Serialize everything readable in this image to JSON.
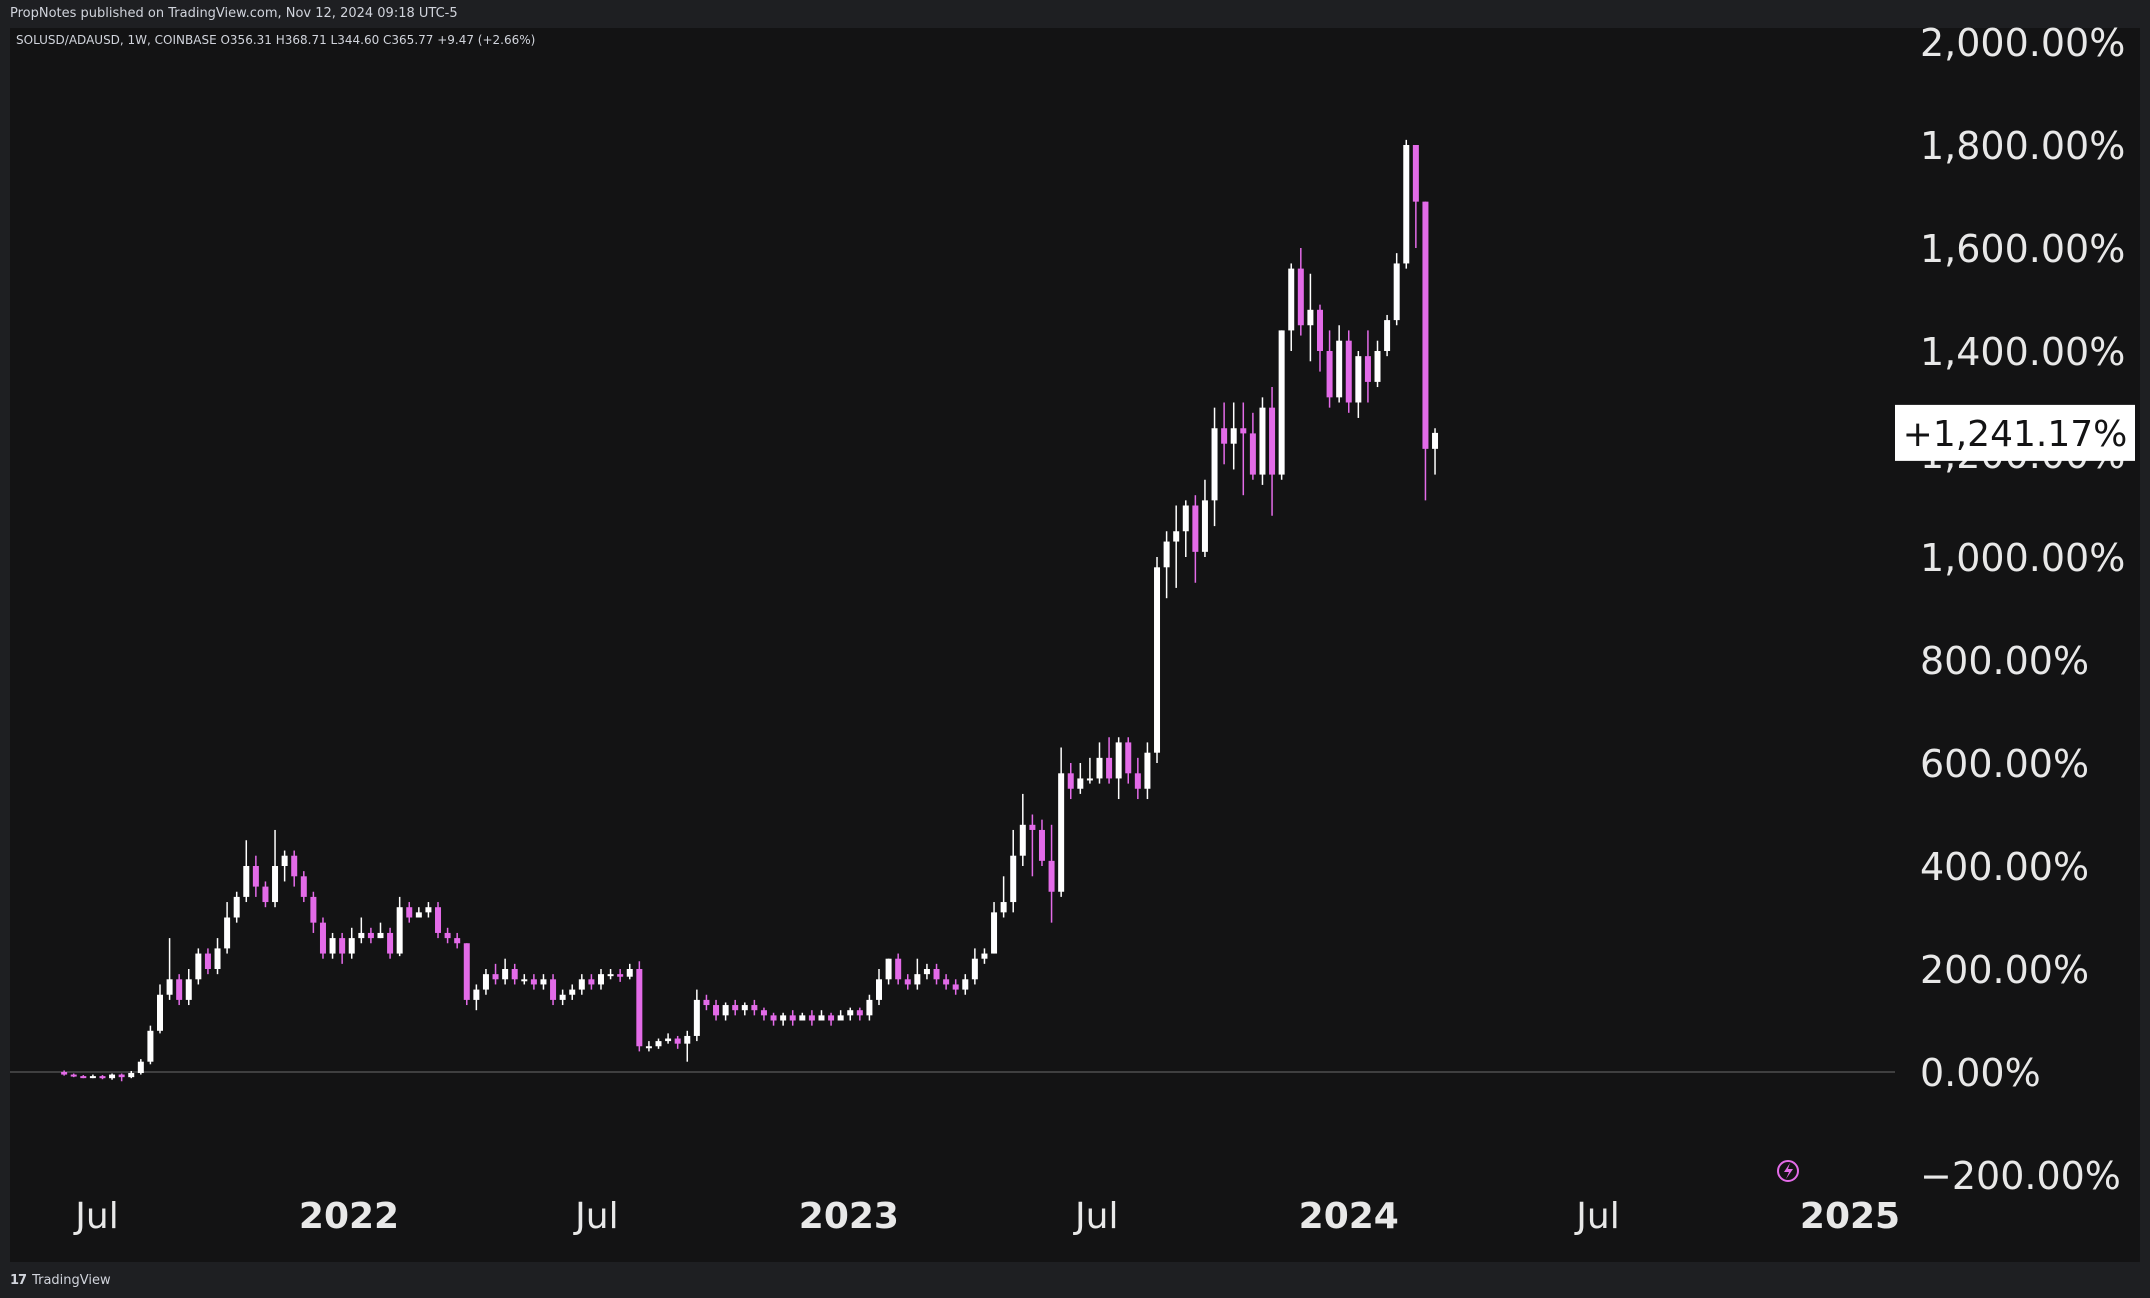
{
  "header": {
    "published_text": "PropNotes published on TradingView.com, Nov 12, 2024 09:18 UTC-5"
  },
  "legend": {
    "symbol_line": "SOLUSD/ADAUSD, 1W, COINBASE  O356.31  H368.71  L344.60  C365.77  +9.47 (+2.66%)"
  },
  "footer": {
    "brand_mark": "17",
    "brand_label": "TradingView"
  },
  "colors": {
    "background": "#131314",
    "up_candle": "#ffffff",
    "down_candle": "#e36be8",
    "text": "#e8e8e8",
    "zero_line": "#6b6b6b"
  },
  "chart_data": {
    "type": "candlestick",
    "title": "",
    "xlabel": "",
    "ylabel": "",
    "y_scale": "percent",
    "ylim": [
      -200,
      2000
    ],
    "y_ticks": [
      {
        "value": 2000,
        "label": "2,000.00%"
      },
      {
        "value": 1800,
        "label": "1,800.00%"
      },
      {
        "value": 1600,
        "label": "1,600.00%"
      },
      {
        "value": 1400,
        "label": "1,400.00%"
      },
      {
        "value": 1200,
        "label": "1,200.00%"
      },
      {
        "value": 1000,
        "label": "1,000.00%"
      },
      {
        "value": 800,
        "label": "800.00%"
      },
      {
        "value": 600,
        "label": "600.00%"
      },
      {
        "value": 400,
        "label": "400.00%"
      },
      {
        "value": 200,
        "label": "200.00%"
      },
      {
        "value": 0,
        "label": "0.00%"
      },
      {
        "value": -200,
        "label": "−200.00%"
      }
    ],
    "x_ticks": [
      {
        "date": "2021-07-01",
        "label": "Jul",
        "bold": false
      },
      {
        "date": "2022-01-01",
        "label": "2022",
        "bold": true
      },
      {
        "date": "2022-07-01",
        "label": "Jul",
        "bold": false
      },
      {
        "date": "2023-01-01",
        "label": "2023",
        "bold": true
      },
      {
        "date": "2023-07-01",
        "label": "Jul",
        "bold": false
      },
      {
        "date": "2024-01-01",
        "label": "2024",
        "bold": true
      },
      {
        "date": "2024-07-01",
        "label": "Jul",
        "bold": false
      },
      {
        "date": "2025-01-01",
        "label": "2025",
        "bold": true
      }
    ],
    "last_value_label": "+1,241.17%",
    "last_value": 1241,
    "series": [
      {
        "first_week": "2021-06-07",
        "interval": "1W",
        "candles": [
          [
            0,
            -5,
            3,
            -7
          ],
          [
            -5,
            -8,
            -3,
            -10
          ],
          [
            -8,
            -10,
            -6,
            -12
          ],
          [
            -10,
            -8,
            -5,
            -12
          ],
          [
            -8,
            -12,
            -6,
            -14
          ],
          [
            -12,
            -5,
            -3,
            -15
          ],
          [
            -5,
            -10,
            -3,
            -18
          ],
          [
            -10,
            -2,
            2,
            -12
          ],
          [
            -2,
            20,
            25,
            -5
          ],
          [
            20,
            80,
            90,
            15
          ],
          [
            80,
            150,
            170,
            75
          ],
          [
            150,
            180,
            260,
            140
          ],
          [
            180,
            140,
            190,
            130
          ],
          [
            140,
            180,
            200,
            130
          ],
          [
            180,
            230,
            240,
            170
          ],
          [
            230,
            200,
            240,
            190
          ],
          [
            200,
            240,
            260,
            190
          ],
          [
            240,
            300,
            330,
            230
          ],
          [
            300,
            340,
            350,
            290
          ],
          [
            340,
            400,
            450,
            330
          ],
          [
            400,
            360,
            420,
            340
          ],
          [
            360,
            330,
            370,
            320
          ],
          [
            330,
            400,
            470,
            320
          ],
          [
            400,
            420,
            430,
            370
          ],
          [
            420,
            380,
            430,
            360
          ],
          [
            380,
            340,
            390,
            330
          ],
          [
            340,
            290,
            350,
            270
          ],
          [
            290,
            230,
            300,
            220
          ],
          [
            230,
            260,
            270,
            220
          ],
          [
            260,
            230,
            270,
            210
          ],
          [
            230,
            260,
            280,
            220
          ],
          [
            260,
            270,
            300,
            250
          ],
          [
            270,
            260,
            280,
            250
          ],
          [
            260,
            270,
            290,
            260
          ],
          [
            270,
            230,
            280,
            220
          ],
          [
            230,
            320,
            340,
            225
          ],
          [
            320,
            300,
            330,
            290
          ],
          [
            300,
            310,
            320,
            300
          ],
          [
            310,
            320,
            330,
            300
          ],
          [
            320,
            270,
            330,
            260
          ],
          [
            270,
            260,
            280,
            250
          ],
          [
            260,
            250,
            270,
            240
          ],
          [
            250,
            140,
            250,
            130
          ],
          [
            140,
            160,
            170,
            120
          ],
          [
            160,
            190,
            200,
            150
          ],
          [
            190,
            180,
            210,
            170
          ],
          [
            180,
            200,
            220,
            170
          ],
          [
            200,
            180,
            210,
            170
          ],
          [
            180,
            180,
            190,
            170
          ],
          [
            180,
            170,
            190,
            160
          ],
          [
            170,
            180,
            190,
            160
          ],
          [
            180,
            140,
            190,
            130
          ],
          [
            140,
            150,
            160,
            130
          ],
          [
            150,
            160,
            170,
            140
          ],
          [
            160,
            180,
            190,
            150
          ],
          [
            180,
            170,
            190,
            160
          ],
          [
            170,
            190,
            200,
            160
          ],
          [
            190,
            190,
            200,
            180
          ],
          [
            190,
            185,
            200,
            175
          ],
          [
            185,
            200,
            210,
            180
          ],
          [
            200,
            50,
            215,
            40
          ],
          [
            50,
            50,
            60,
            40
          ],
          [
            50,
            60,
            65,
            45
          ],
          [
            60,
            65,
            75,
            55
          ],
          [
            65,
            55,
            70,
            45
          ],
          [
            55,
            70,
            80,
            20
          ],
          [
            70,
            140,
            160,
            60
          ],
          [
            140,
            130,
            150,
            120
          ],
          [
            130,
            110,
            140,
            100
          ],
          [
            110,
            130,
            135,
            100
          ],
          [
            130,
            120,
            140,
            110
          ],
          [
            120,
            130,
            135,
            110
          ],
          [
            130,
            120,
            140,
            110
          ],
          [
            120,
            110,
            125,
            100
          ],
          [
            110,
            100,
            115,
            90
          ],
          [
            100,
            110,
            115,
            90
          ],
          [
            110,
            100,
            120,
            90
          ],
          [
            100,
            110,
            115,
            100
          ],
          [
            110,
            100,
            120,
            90
          ],
          [
            100,
            110,
            120,
            100
          ],
          [
            110,
            100,
            115,
            90
          ],
          [
            100,
            110,
            120,
            100
          ],
          [
            110,
            120,
            125,
            100
          ],
          [
            120,
            110,
            125,
            100
          ],
          [
            110,
            140,
            150,
            100
          ],
          [
            140,
            180,
            200,
            130
          ],
          [
            180,
            220,
            220,
            170
          ],
          [
            220,
            180,
            230,
            170
          ],
          [
            180,
            170,
            190,
            160
          ],
          [
            170,
            190,
            220,
            160
          ],
          [
            190,
            200,
            210,
            180
          ],
          [
            200,
            180,
            210,
            170
          ],
          [
            180,
            170,
            190,
            160
          ],
          [
            170,
            160,
            180,
            150
          ],
          [
            160,
            180,
            190,
            150
          ],
          [
            180,
            220,
            240,
            170
          ],
          [
            220,
            230,
            240,
            210
          ],
          [
            230,
            310,
            330,
            230
          ],
          [
            310,
            330,
            380,
            300
          ],
          [
            330,
            420,
            470,
            310
          ],
          [
            420,
            480,
            540,
            400
          ],
          [
            480,
            470,
            500,
            380
          ],
          [
            470,
            410,
            490,
            400
          ],
          [
            410,
            350,
            480,
            290
          ],
          [
            350,
            580,
            630,
            340
          ],
          [
            580,
            550,
            600,
            530
          ],
          [
            550,
            570,
            600,
            540
          ],
          [
            570,
            570,
            610,
            560
          ],
          [
            570,
            610,
            640,
            560
          ],
          [
            610,
            570,
            650,
            560
          ],
          [
            570,
            640,
            650,
            530
          ],
          [
            640,
            580,
            650,
            560
          ],
          [
            580,
            550,
            610,
            530
          ],
          [
            550,
            620,
            640,
            530
          ],
          [
            620,
            980,
            1000,
            600
          ],
          [
            980,
            1030,
            1050,
            920
          ],
          [
            1030,
            1050,
            1100,
            940
          ],
          [
            1050,
            1100,
            1110,
            1000
          ],
          [
            1100,
            1010,
            1120,
            950
          ],
          [
            1010,
            1110,
            1150,
            1000
          ],
          [
            1110,
            1250,
            1290,
            1060
          ],
          [
            1250,
            1220,
            1300,
            1180
          ],
          [
            1220,
            1250,
            1300,
            1170
          ],
          [
            1250,
            1240,
            1300,
            1120
          ],
          [
            1240,
            1160,
            1280,
            1150
          ],
          [
            1160,
            1290,
            1310,
            1140
          ],
          [
            1290,
            1160,
            1330,
            1080
          ],
          [
            1160,
            1440,
            1440,
            1150
          ],
          [
            1440,
            1560,
            1570,
            1400
          ],
          [
            1560,
            1450,
            1600,
            1430
          ],
          [
            1450,
            1480,
            1550,
            1380
          ],
          [
            1480,
            1400,
            1490,
            1360
          ],
          [
            1400,
            1310,
            1440,
            1290
          ],
          [
            1310,
            1420,
            1450,
            1300
          ],
          [
            1420,
            1300,
            1440,
            1280
          ],
          [
            1300,
            1390,
            1400,
            1270
          ],
          [
            1390,
            1340,
            1440,
            1300
          ],
          [
            1340,
            1400,
            1420,
            1330
          ],
          [
            1400,
            1460,
            1470,
            1390
          ],
          [
            1460,
            1570,
            1590,
            1450
          ],
          [
            1570,
            1800,
            1810,
            1560
          ],
          [
            1800,
            1690,
            1800,
            1600
          ],
          [
            1690,
            1210,
            1690,
            1110
          ],
          [
            1210,
            1241,
            1250,
            1160
          ]
        ]
      }
    ]
  }
}
